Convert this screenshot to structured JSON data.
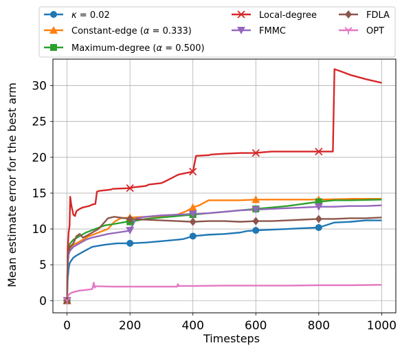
{
  "chart_data": {
    "type": "line",
    "xlabel": "Timesteps",
    "ylabel": "Mean estimate error for the best arm",
    "xlim": [
      -45,
      1045
    ],
    "ylim": [
      -1.7,
      33.7
    ],
    "xticks": [
      "0",
      "200",
      "400",
      "600",
      "800",
      "1000"
    ],
    "yticks": [
      "0",
      "5",
      "10",
      "15",
      "20",
      "25",
      "30"
    ],
    "grid": true,
    "legend_position": "top, outside plot, 3 columns",
    "series": [
      {
        "name": "κ = 0.02",
        "name_text": "κ",
        "name_suffix": " = 0.02",
        "color": "#1f77b4",
        "marker": "circle",
        "x": [
          0,
          2,
          5,
          8,
          12,
          20,
          30,
          50,
          80,
          120,
          160,
          200,
          250,
          300,
          350,
          370,
          400,
          450,
          500,
          550,
          570,
          600,
          650,
          700,
          750,
          800,
          850,
          900,
          950,
          1000
        ],
        "y": [
          0,
          3,
          4.5,
          5.2,
          5.5,
          6.0,
          6.3,
          6.8,
          7.5,
          7.8,
          8.0,
          8.0,
          8.1,
          8.3,
          8.5,
          8.6,
          9.0,
          9.2,
          9.3,
          9.5,
          9.7,
          9.8,
          9.9,
          10.0,
          10.1,
          10.2,
          10.9,
          11.0,
          11.2,
          11.2
        ],
        "markers_x": [
          0,
          200,
          400,
          600,
          800
        ]
      },
      {
        "name": "Constant-edge (α = 0.333)",
        "name_text": "Constant-edge (",
        "name_math": "α",
        "name_suffix": " = 0.333)",
        "color": "#ff7f0e",
        "marker": "triangle-up",
        "x": [
          0,
          2,
          5,
          10,
          20,
          30,
          50,
          70,
          100,
          130,
          150,
          170,
          200,
          250,
          300,
          350,
          380,
          400,
          420,
          450,
          500,
          550,
          600,
          650,
          700,
          800,
          900,
          1000
        ],
        "y": [
          0,
          5,
          6.5,
          7.2,
          7.8,
          8.0,
          8.5,
          9.0,
          9.5,
          10.0,
          11.0,
          11.5,
          11.6,
          11.7,
          11.8,
          12.0,
          12.5,
          13.0,
          13.3,
          14.0,
          14.0,
          14.0,
          14.1,
          14.1,
          14.1,
          14.1,
          14.2,
          14.2
        ],
        "markers_x": [
          0,
          200,
          400,
          600,
          800
        ]
      },
      {
        "name": "Maximum-degree (α = 0.500)",
        "name_text": "Maximum-degree (",
        "name_math": "α",
        "name_suffix": " = 0.500)",
        "color": "#2ca02c",
        "marker": "square",
        "x": [
          0,
          2,
          5,
          10,
          20,
          40,
          60,
          90,
          120,
          150,
          190,
          200,
          250,
          300,
          350,
          400,
          450,
          500,
          550,
          600,
          650,
          700,
          750,
          800,
          850,
          900,
          1000
        ],
        "y": [
          0,
          6,
          7.5,
          8.0,
          8.5,
          9.0,
          9.5,
          10.0,
          10.5,
          10.7,
          11.0,
          11.0,
          11.4,
          11.6,
          11.8,
          12.0,
          12.2,
          12.4,
          12.6,
          12.8,
          13.0,
          13.2,
          13.5,
          13.8,
          14.0,
          14.0,
          14.1
        ],
        "markers_x": [
          0,
          200,
          400,
          600,
          800
        ]
      },
      {
        "name": "Local-degree",
        "color": "#d62728",
        "marker": "x",
        "x": [
          0,
          2,
          5,
          8,
          10,
          13,
          15,
          20,
          25,
          30,
          40,
          50,
          60,
          70,
          80,
          90,
          95,
          100,
          140,
          145,
          200,
          210,
          250,
          260,
          300,
          310,
          350,
          355,
          400,
          410,
          450,
          460,
          500,
          550,
          600,
          620,
          650,
          700,
          750,
          800,
          845,
          850,
          870,
          900,
          950,
          1000
        ],
        "y": [
          0,
          7,
          9.5,
          10.5,
          14.5,
          13.5,
          13.0,
          12.0,
          11.8,
          12.5,
          12.8,
          13.0,
          13.1,
          13.2,
          13.4,
          13.5,
          15.2,
          15.3,
          15.5,
          15.6,
          15.7,
          15.8,
          16.0,
          16.2,
          16.4,
          16.6,
          17.5,
          17.6,
          18.0,
          20.2,
          20.3,
          20.4,
          20.5,
          20.6,
          20.6,
          20.7,
          20.8,
          20.8,
          20.8,
          20.8,
          20.8,
          32.3,
          32.0,
          31.5,
          30.9,
          30.4
        ],
        "markers_x": [
          0,
          200,
          400,
          600,
          800
        ]
      },
      {
        "name": "FMMC",
        "color": "#9467bd",
        "marker": "triangle-down",
        "x": [
          0,
          2,
          5,
          10,
          20,
          40,
          60,
          80,
          100,
          130,
          160,
          190,
          200,
          220,
          250,
          300,
          350,
          400,
          450,
          500,
          550,
          600,
          650,
          700,
          750,
          800,
          850,
          900,
          950,
          1000
        ],
        "y": [
          0,
          5,
          6.5,
          7.0,
          7.5,
          8.0,
          8.5,
          8.8,
          9.0,
          9.3,
          9.5,
          9.7,
          9.8,
          11.5,
          11.7,
          11.9,
          12.0,
          12.1,
          12.2,
          12.4,
          12.6,
          12.7,
          12.8,
          12.9,
          13.0,
          13.1,
          13.1,
          13.2,
          13.2,
          13.3
        ],
        "markers_x": [
          0,
          200,
          400,
          600,
          800
        ]
      },
      {
        "name": "FDLA",
        "color": "#8c564b",
        "marker": "diamond",
        "x": [
          0,
          2,
          5,
          10,
          20,
          30,
          40,
          50,
          60,
          80,
          100,
          130,
          150,
          200,
          250,
          300,
          350,
          400,
          450,
          500,
          550,
          600,
          650,
          700,
          750,
          800,
          850,
          900,
          950,
          1000
        ],
        "y": [
          0,
          6.5,
          7.0,
          7.5,
          8.0,
          9.0,
          9.3,
          8.8,
          9.0,
          9.5,
          10.0,
          11.5,
          11.7,
          11.4,
          11.3,
          11.2,
          11.1,
          11.0,
          11.1,
          11.1,
          11.0,
          11.1,
          11.1,
          11.2,
          11.3,
          11.4,
          11.4,
          11.5,
          11.5,
          11.6
        ],
        "markers_x": [
          0,
          200,
          400,
          600,
          800
        ]
      },
      {
        "name": "OPT",
        "color": "#e377c2",
        "marker": "tri-down",
        "x": [
          0,
          2,
          5,
          10,
          20,
          40,
          60,
          80,
          85,
          88,
          90,
          95,
          100,
          150,
          200,
          250,
          300,
          350,
          352,
          355,
          400,
          500,
          600,
          700,
          800,
          900,
          1000
        ],
        "y": [
          0,
          0.5,
          0.8,
          1.0,
          1.2,
          1.4,
          1.5,
          1.6,
          2.5,
          1.8,
          2.0,
          2.0,
          2.0,
          1.95,
          1.95,
          1.95,
          1.95,
          1.95,
          2.3,
          2.05,
          2.05,
          2.1,
          2.1,
          2.1,
          2.15,
          2.15,
          2.2
        ],
        "markers_x": [
          0
        ]
      }
    ]
  }
}
